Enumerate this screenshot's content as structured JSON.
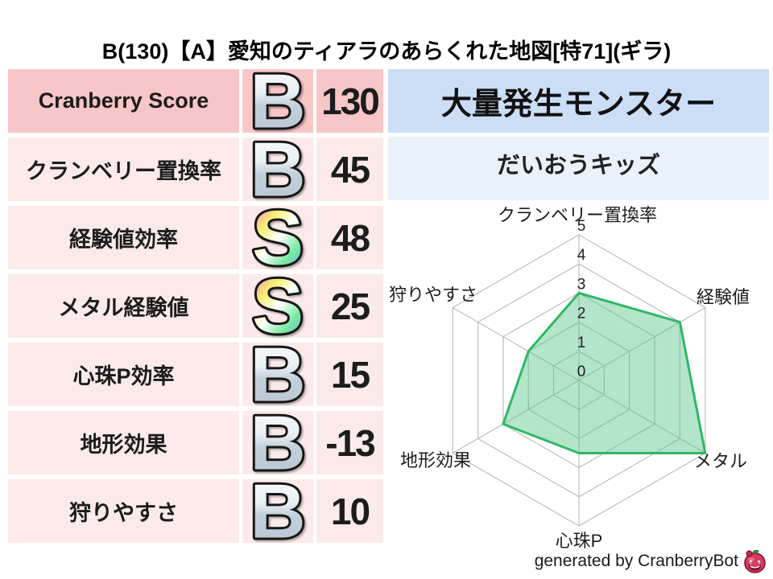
{
  "title": "B(130)【A】愛知のティアラのあらくれた地図[特71](ギラ)",
  "stats_table": {
    "rows": [
      {
        "label": "Cranberry Score",
        "grade": "B",
        "value": "130"
      },
      {
        "label": "クランベリー置換率",
        "grade": "B",
        "value": "45"
      },
      {
        "label": "経験値効率",
        "grade": "S",
        "value": "48"
      },
      {
        "label": "メタル経験値",
        "grade": "S",
        "value": "25"
      },
      {
        "label": "心珠P効率",
        "grade": "B",
        "value": "15"
      },
      {
        "label": "地形効果",
        "grade": "B",
        "value": "-13"
      },
      {
        "label": "狩りやすさ",
        "grade": "B",
        "value": "10"
      }
    ]
  },
  "monster_panel": {
    "header": "大量発生モンスター",
    "name": "だいおうキッズ"
  },
  "chart_data": {
    "type": "radar",
    "categories": [
      "クランベリー置換率",
      "経験値",
      "メタル",
      "心珠P",
      "地形効果",
      "狩りやすさ"
    ],
    "values": [
      3,
      4,
      5,
      2.5,
      3,
      2
    ],
    "ticks": [
      0,
      1,
      2,
      3,
      4,
      5
    ],
    "rmax": 5,
    "grid": true,
    "legend": "none",
    "stroke_color": "#2eb865",
    "fill_color": "rgba(84,198,136,0.45)",
    "grid_color": "#bdbdbd"
  },
  "footer": {
    "credit": "generated by CranberryBot",
    "icon": "cranberry-bot-icon"
  },
  "colors": {
    "row_highlight_pink": "#f8c6c6",
    "row_pink": "#fceaea",
    "header_blue": "#cbdef6",
    "row_blue": "#e9f1fb",
    "grade_b_silver": "#c3d0da",
    "grade_s_rainbow_top": "#fa6ee4",
    "radar_green": "#2eb865"
  }
}
